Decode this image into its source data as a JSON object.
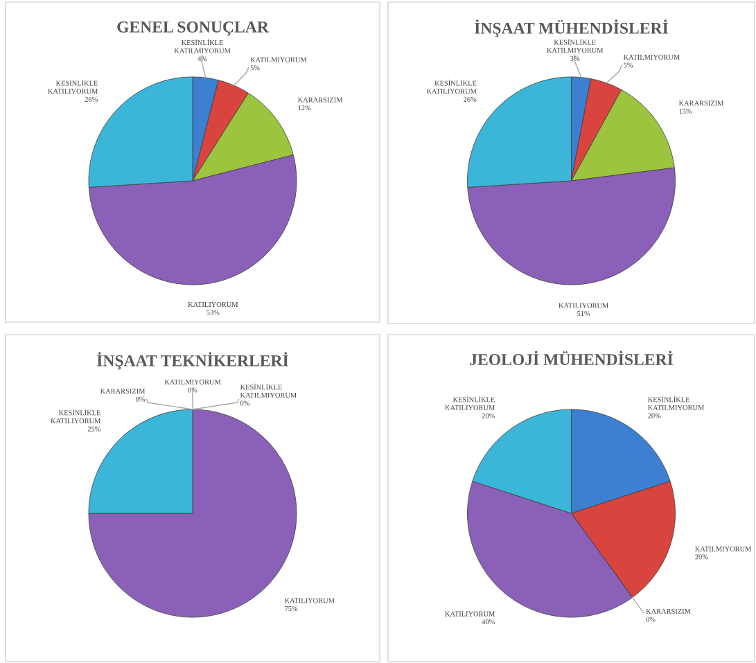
{
  "chart_data": [
    {
      "type": "pie",
      "title": "GENEL SONUÇLAR",
      "categories": [
        "KESİNLİKLE\nKATILMIYORUM",
        "KATILMIYORUM",
        "KARARSIZIM",
        "KATILIYORUM",
        "KESİNLİKLE\nKATILIYORUM"
      ],
      "values": [
        4,
        5,
        12,
        53,
        26
      ],
      "value_labels": [
        "4%",
        "5%",
        "12%",
        "53%",
        "26%"
      ],
      "colors": [
        "#3d7fd1",
        "#d9443f",
        "#9cc43e",
        "#8a60b8",
        "#3bb6d9"
      ]
    },
    {
      "type": "pie",
      "title": "İNŞAAT MÜHENDİSLERİ",
      "categories": [
        "KESİNLİKLE\nKATILMIYORUM",
        "KATILMIYORUM",
        "KARARSIZIM",
        "KATILIYORUM",
        "KESİNLİKLE\nKATILIYORUM"
      ],
      "values": [
        3,
        5,
        15,
        51,
        26
      ],
      "value_labels": [
        "3%",
        "5%",
        "15%",
        "51%",
        "26%"
      ],
      "colors": [
        "#3d7fd1",
        "#d9443f",
        "#9cc43e",
        "#8a60b8",
        "#3bb6d9"
      ]
    },
    {
      "type": "pie",
      "title": "İNŞAAT TEKNİKERLERİ",
      "categories": [
        "KESİNLİKLE\nKATILMIYORUM",
        "KATILMIYORUM",
        "KARARSIZIM",
        "KATILIYORUM",
        "KESİNLİKLE\nKATILIYORUM"
      ],
      "values": [
        0,
        0,
        0,
        75,
        25
      ],
      "value_labels": [
        "0%",
        "0%",
        "0%",
        "75%",
        "25%"
      ],
      "colors": [
        "#3d7fd1",
        "#d9443f",
        "#9cc43e",
        "#8a60b8",
        "#3bb6d9"
      ]
    },
    {
      "type": "pie",
      "title": "JEOLOJİ MÜHENDİSLERİ",
      "categories": [
        "KESİNLİKLE\nKATILMIYORUM",
        "KATILMIYORUM",
        "KARARSIZIM",
        "KATILIYORUM",
        "KESİNLİKLE\nKATILIYORUM"
      ],
      "values": [
        20,
        20,
        0,
        40,
        20
      ],
      "value_labels": [
        "20%",
        "20%",
        "0%",
        "40%",
        "20%"
      ],
      "colors": [
        "#3d7fd1",
        "#d9443f",
        "#9cc43e",
        "#8a60b8",
        "#3bb6d9"
      ]
    }
  ]
}
